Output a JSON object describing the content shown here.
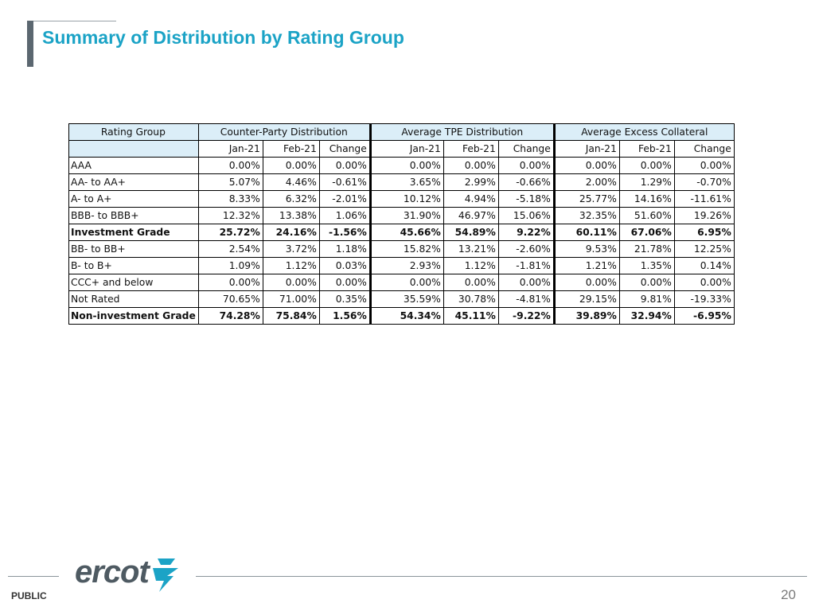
{
  "title": "Summary of Distribution by Rating Group",
  "table": {
    "header": {
      "rating_group": "Rating Group",
      "sections": [
        "Counter-Party Distribution",
        "Average TPE Distribution",
        "Average Excess Collateral"
      ],
      "subcols": [
        "Jan-21",
        "Feb-21",
        "Change"
      ]
    },
    "rows": [
      {
        "label": "AAA",
        "bold": false,
        "vals": [
          "0.00%",
          "0.00%",
          "0.00%",
          "0.00%",
          "0.00%",
          "0.00%",
          "0.00%",
          "0.00%",
          "0.00%"
        ]
      },
      {
        "label": "AA- to AA+",
        "bold": false,
        "vals": [
          "5.07%",
          "4.46%",
          "-0.61%",
          "3.65%",
          "2.99%",
          "-0.66%",
          "2.00%",
          "1.29%",
          "-0.70%"
        ]
      },
      {
        "label": "A- to A+",
        "bold": false,
        "vals": [
          "8.33%",
          "6.32%",
          "-2.01%",
          "10.12%",
          "4.94%",
          "-5.18%",
          "25.77%",
          "14.16%",
          "-11.61%"
        ]
      },
      {
        "label": "BBB- to BBB+",
        "bold": false,
        "vals": [
          "12.32%",
          "13.38%",
          "1.06%",
          "31.90%",
          "46.97%",
          "15.06%",
          "32.35%",
          "51.60%",
          "19.26%"
        ]
      },
      {
        "label": "Investment Grade",
        "bold": true,
        "vals": [
          "25.72%",
          "24.16%",
          "-1.56%",
          "45.66%",
          "54.89%",
          "9.22%",
          "60.11%",
          "67.06%",
          "6.95%"
        ]
      },
      {
        "label": "BB- to BB+",
        "bold": false,
        "vals": [
          "2.54%",
          "3.72%",
          "1.18%",
          "15.82%",
          "13.21%",
          "-2.60%",
          "9.53%",
          "21.78%",
          "12.25%"
        ]
      },
      {
        "label": "B- to B+",
        "bold": false,
        "vals": [
          "1.09%",
          "1.12%",
          "0.03%",
          "2.93%",
          "1.12%",
          "-1.81%",
          "1.21%",
          "1.35%",
          "0.14%"
        ]
      },
      {
        "label": "CCC+ and below",
        "bold": false,
        "vals": [
          "0.00%",
          "0.00%",
          "0.00%",
          "0.00%",
          "0.00%",
          "0.00%",
          "0.00%",
          "0.00%",
          "0.00%"
        ]
      },
      {
        "label": "Not Rated",
        "bold": false,
        "vals": [
          "70.65%",
          "71.00%",
          "0.35%",
          "35.59%",
          "30.78%",
          "-4.81%",
          "29.15%",
          "9.81%",
          "-19.33%"
        ]
      },
      {
        "label": "Non-investment Grade",
        "bold": true,
        "vals": [
          "74.28%",
          "75.84%",
          "1.56%",
          "54.34%",
          "45.11%",
          "-9.22%",
          "39.89%",
          "32.94%",
          "-6.95%"
        ]
      }
    ]
  },
  "footer": {
    "logo_text": "ercot",
    "classification": "PUBLIC",
    "page_number": "20"
  },
  "colors": {
    "title": "#1ba3c6",
    "header_fill": "#dbeef8",
    "logo": "#4e5a62",
    "logo_accent": "#1ba3c6"
  }
}
